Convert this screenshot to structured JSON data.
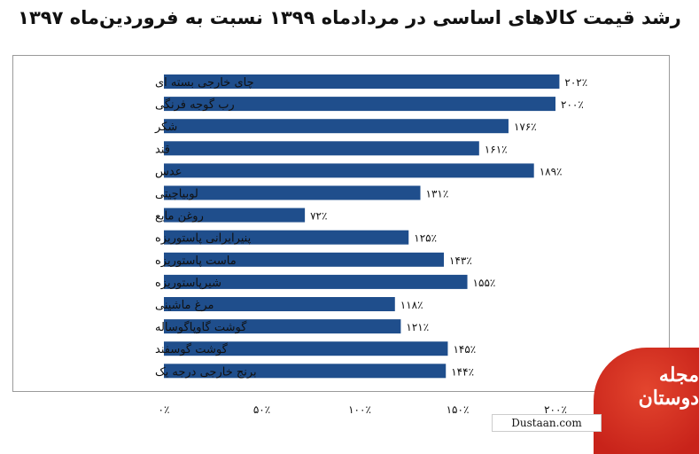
{
  "title": "رشد قیمت کالاهای اساسی در مردادماه ۱۳۹۹ نسبت به فروردین‌ماه ۱۳۹۷",
  "chart_data": {
    "type": "bar",
    "orientation": "horizontal",
    "categories": [
      "چای خارجی بسته ای",
      "رب گوجه فرنگی",
      "شکر",
      "قند",
      "عدس",
      "لوبیاچیتی",
      "روغن مایع",
      "پنیرایرانی پاستوریزه",
      "ماست پاستوریزه",
      "شیرپاستوریزه",
      "مرغ ماشینی",
      "گوشت گاوپاگوساله",
      "گوشت گوسفند",
      "برنج خارجی درجه یک"
    ],
    "values": [
      202,
      200,
      176,
      161,
      189,
      131,
      72,
      125,
      143,
      155,
      118,
      121,
      145,
      144
    ],
    "value_labels": [
      "۲۰۲٪",
      "۲۰۰٪",
      "۱۷۶٪",
      "۱۶۱٪",
      "۱۸۹٪",
      "۱۳۱٪",
      "۷۲٪",
      "۱۲۵٪",
      "۱۴۳٪",
      "۱۵۵٪",
      "۱۱۸٪",
      "۱۲۱٪",
      "۱۴۵٪",
      "۱۴۴٪"
    ],
    "xlim": [
      0,
      200
    ],
    "xticks": [
      0,
      50,
      100,
      150,
      200
    ],
    "xtick_labels": [
      "۰٪",
      "۵۰٪",
      "۱۰۰٪",
      "۱۵۰٪",
      "۲۰۰٪"
    ],
    "grid": false,
    "bar_color": "#1f4e8c"
  },
  "watermark": {
    "logo_text": "مجله دوستان",
    "site": "Dustaan.com"
  }
}
